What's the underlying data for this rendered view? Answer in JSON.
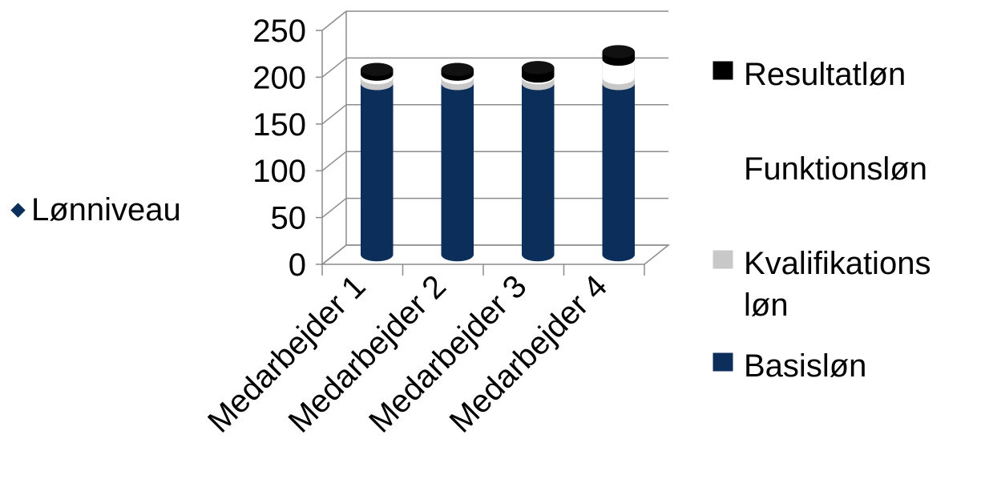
{
  "side_label": {
    "text": "Lønniveau",
    "icon": "diamond-bullet-icon",
    "color": "#0b2e5b"
  },
  "chart_data": {
    "type": "bar",
    "stacked": true,
    "three_d": true,
    "shape": "cylinder",
    "categories": [
      "Medarbejder 1",
      "Medarbejder 2",
      "Medarbejder 3",
      "Medarbejder 4"
    ],
    "series": [
      {
        "name": "Basisløn",
        "color": "#0b2e5b",
        "values": [
          183,
          183,
          183,
          183
        ]
      },
      {
        "name": "Kvalifikationsløn",
        "color": "#c8c8c8",
        "values": [
          6,
          6,
          6,
          6
        ]
      },
      {
        "name": "Funktionsløn",
        "color": "#ffffff",
        "values": [
          4,
          4,
          2,
          20
        ]
      },
      {
        "name": "Resultatløn",
        "color": "#000000",
        "values": [
          5,
          5,
          9,
          8
        ]
      }
    ],
    "legend_entries": [
      {
        "lines": [
          "Resultatløn"
        ],
        "color": "#000000"
      },
      {
        "lines": [
          "Funktionsløn"
        ],
        "color": "#ffffff"
      },
      {
        "lines": [
          "Kvalifikations",
          "løn"
        ],
        "color": "#c8c8c8"
      },
      {
        "lines": [
          "Basisløn"
        ],
        "color": "#0b2e5b"
      }
    ],
    "y_ticks": [
      "0",
      "50",
      "100",
      "150",
      "200",
      "250"
    ],
    "ylim": [
      0,
      250
    ],
    "grid": true,
    "legend_position": "right"
  }
}
